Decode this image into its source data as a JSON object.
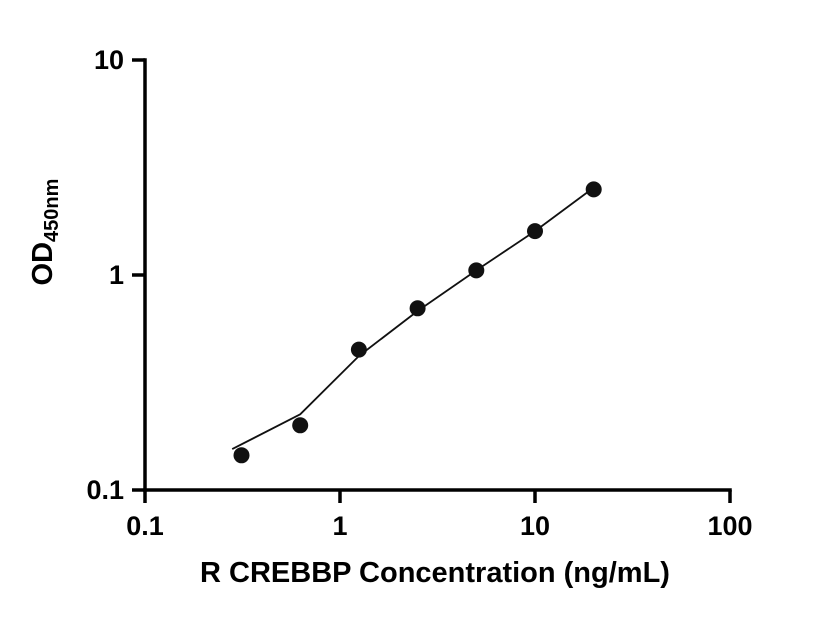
{
  "chart_data": {
    "type": "scatter",
    "title": "",
    "xlabel": "R CREBBP Concentration (ng/mL)",
    "ylabel_main": "OD",
    "ylabel_sub": "450nm",
    "xscale": "log",
    "yscale": "log",
    "xlim": [
      0.1,
      100
    ],
    "ylim": [
      0.1,
      10
    ],
    "x_ticks": [
      0.1,
      1,
      10,
      100
    ],
    "x_tick_labels": [
      "0.1",
      "1",
      "10",
      "100"
    ],
    "y_ticks": [
      0.1,
      1,
      10
    ],
    "y_tick_labels": [
      "0.1",
      "1",
      "10"
    ],
    "grid": false,
    "legend": "none",
    "points": {
      "x": [
        0.3125,
        0.625,
        1.25,
        2.5,
        5,
        10,
        20
      ],
      "y": [
        0.145,
        0.2,
        0.45,
        0.7,
        1.05,
        1.6,
        2.5
      ]
    },
    "trend": {
      "x": [
        0.28,
        0.625,
        1.25,
        2.5,
        5,
        10,
        20
      ],
      "y": [
        0.155,
        0.225,
        0.42,
        0.68,
        1.05,
        1.6,
        2.55
      ]
    },
    "colors": {
      "points": "#111111",
      "line": "#111111",
      "axis": "#000000"
    }
  }
}
